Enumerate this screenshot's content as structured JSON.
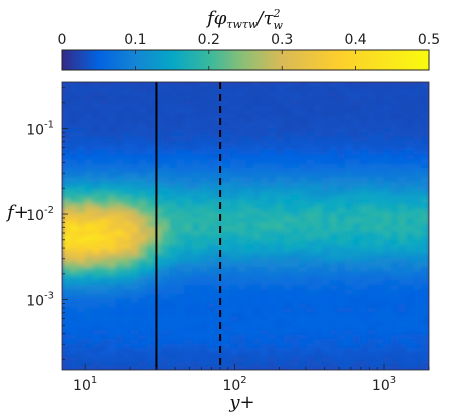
{
  "chart_data": {
    "type": "heatmap",
    "title": "",
    "xlabel": "y+",
    "ylabel": "f+",
    "x_scale": "log",
    "y_scale": "log",
    "xlim": [
      7,
      2000
    ],
    "ylim": [
      0.00015,
      0.35
    ],
    "x_ticks": [
      {
        "value": 10,
        "label": "10",
        "exp": "1"
      },
      {
        "value": 100,
        "label": "10",
        "exp": "2"
      },
      {
        "value": 1000,
        "label": "10",
        "exp": "3"
      }
    ],
    "y_ticks": [
      {
        "value": 0.1,
        "label": "10",
        "exp": "-1"
      },
      {
        "value": 0.01,
        "label": "10",
        "exp": "-2"
      },
      {
        "value": 0.001,
        "label": "10",
        "exp": "-3"
      }
    ],
    "colorbar": {
      "title": "fφτwτw/τw²",
      "title_main": "fφ",
      "title_sub": "τwτw",
      "title_den": "/τ",
      "title_den_sub": "w",
      "title_den_sup": "2",
      "range": [
        0,
        0.5
      ],
      "ticks": [
        {
          "value": 0,
          "label": "0"
        },
        {
          "value": 0.1,
          "label": "0.1"
        },
        {
          "value": 0.2,
          "label": "0.2"
        },
        {
          "value": 0.3,
          "label": "0.3"
        },
        {
          "value": 0.4,
          "label": "0.4"
        },
        {
          "value": 0.5,
          "label": "0.5"
        }
      ],
      "colormap": "parula",
      "location": "top"
    },
    "reference_lines": [
      {
        "x": 30,
        "style": "solid",
        "color": "#000000"
      },
      {
        "x": 80,
        "style": "dashed",
        "color": "#000000"
      }
    ],
    "field_description": {
      "peak_value": 0.43,
      "peak_y_plus": 12,
      "peak_f_plus": 0.005,
      "outer_plateau_value": 0.18,
      "band_center_f_plus": 0.008,
      "low_frequency_value": 0.06,
      "high_frequency_value": 0.03
    },
    "grid": false,
    "legend": "none"
  }
}
